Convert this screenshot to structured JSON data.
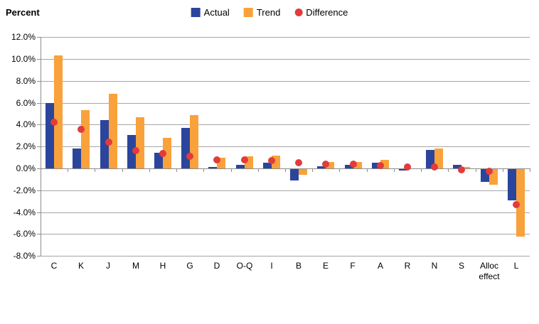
{
  "title": "Percent",
  "colors": {
    "actual": "#2B459C",
    "trend": "#F9A13B",
    "difference": "#E23B3C",
    "gridline": "#A6A6A6",
    "axis": "#8C8C8C",
    "background": "#FFFFFF"
  },
  "chart_data": {
    "type": "bar",
    "title": "Percent",
    "xlabel": "",
    "ylabel": "Percent",
    "ylim": [
      -8,
      12
    ],
    "ytick_step": 2,
    "grid": true,
    "legend_position": "top",
    "categories": [
      "C",
      "K",
      "J",
      "M",
      "H",
      "G",
      "D",
      "O-Q",
      "I",
      "B",
      "E",
      "F",
      "A",
      "R",
      "N",
      "S",
      "Alloc effect",
      "L"
    ],
    "series": [
      {
        "name": "Actual",
        "type": "bar",
        "color": "#2B459C",
        "values": [
          6.0,
          1.8,
          4.4,
          3.05,
          1.45,
          3.7,
          0.15,
          0.3,
          0.5,
          -1.05,
          0.2,
          0.3,
          0.5,
          -0.1,
          1.7,
          0.3,
          -1.2,
          -2.85
        ]
      },
      {
        "name": "Trend",
        "type": "bar",
        "color": "#F9A13B",
        "values": [
          10.3,
          5.35,
          6.8,
          4.65,
          2.8,
          4.85,
          0.95,
          1.1,
          1.15,
          -0.55,
          0.6,
          0.6,
          0.8,
          0.0,
          1.85,
          0.15,
          -1.45,
          -6.2
        ]
      },
      {
        "name": "Difference",
        "type": "scatter",
        "color": "#E23B3C",
        "values": [
          4.25,
          3.55,
          2.4,
          1.6,
          1.35,
          1.1,
          0.75,
          0.8,
          0.7,
          0.55,
          0.4,
          0.4,
          0.25,
          0.15,
          0.1,
          -0.1,
          -0.25,
          -3.3
        ]
      }
    ],
    "yticks": [
      {
        "label": "12.0%",
        "value": 12
      },
      {
        "label": "10.0%",
        "value": 10
      },
      {
        "label": "8.0%",
        "value": 8
      },
      {
        "label": "6.0%",
        "value": 6
      },
      {
        "label": "4.0%",
        "value": 4
      },
      {
        "label": "2.0%",
        "value": 2
      },
      {
        "label": "0.0%",
        "value": 0
      },
      {
        "label": "-2.0%",
        "value": -2
      },
      {
        "label": "-4.0%",
        "value": -4
      },
      {
        "label": "-6.0%",
        "value": -6
      },
      {
        "label": "-8.0%",
        "value": -8
      }
    ]
  }
}
